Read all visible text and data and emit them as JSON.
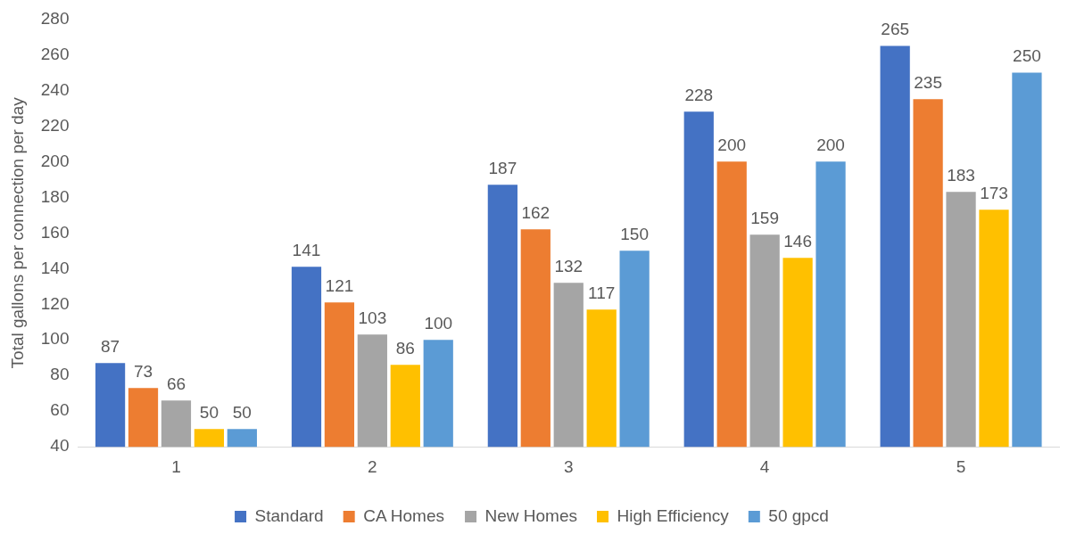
{
  "chart_data": {
    "type": "bar",
    "ylabel": "Total gallons per connection per day",
    "categories": [
      "1",
      "2",
      "3",
      "4",
      "5"
    ],
    "series": [
      {
        "name": "Standard",
        "color": "#4472c4",
        "values": [
          87,
          141,
          187,
          228,
          265
        ]
      },
      {
        "name": "CA Homes",
        "color": "#ed7d31",
        "values": [
          73,
          121,
          162,
          200,
          235
        ]
      },
      {
        "name": "New Homes",
        "color": "#a5a5a5",
        "values": [
          66,
          103,
          132,
          159,
          183
        ]
      },
      {
        "name": "High Efficiency",
        "color": "#ffc000",
        "values": [
          50,
          86,
          117,
          146,
          173
        ]
      },
      {
        "name": "50 gpcd",
        "color": "#5b9bd5",
        "values": [
          50,
          100,
          150,
          200,
          250
        ]
      }
    ],
    "ylim": [
      40,
      280
    ],
    "yticks": [
      40,
      60,
      80,
      100,
      120,
      140,
      160,
      180,
      200,
      220,
      240,
      260,
      280
    ],
    "grid": false,
    "legend": "bottom",
    "data_labels": true
  }
}
